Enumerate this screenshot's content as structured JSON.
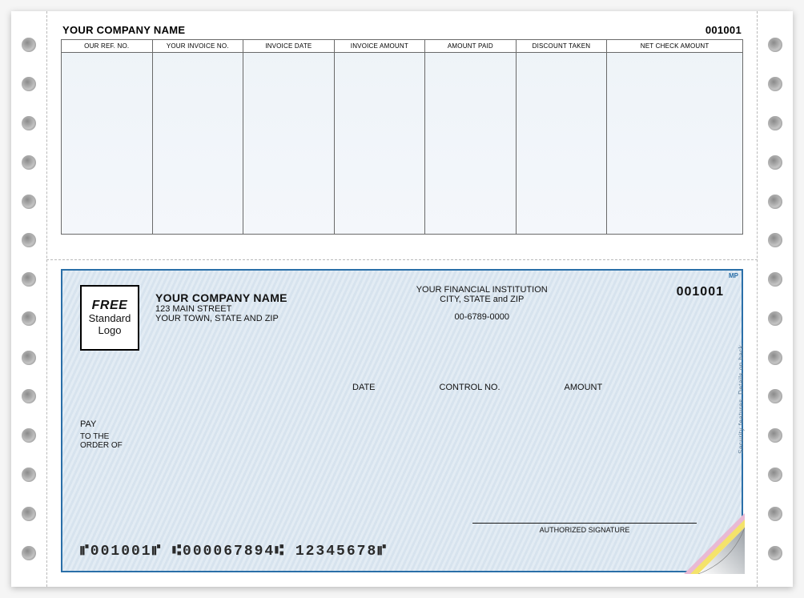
{
  "stub": {
    "company_name": "YOUR COMPANY NAME",
    "check_number": "001001",
    "columns": [
      "OUR REF. NO.",
      "YOUR INVOICE NO.",
      "INVOICE DATE",
      "INVOICE AMOUNT",
      "AMOUNT PAID",
      "DISCOUNT TAKEN",
      "NET CHECK AMOUNT"
    ],
    "background_gradient": [
      "#eef3f8",
      "#f4f7fb"
    ],
    "border_color": "#6a6a6a"
  },
  "check": {
    "logo": {
      "line1": "FREE",
      "line2": "Standard",
      "line3": "Logo"
    },
    "company": {
      "name": "YOUR COMPANY NAME",
      "street": "123 MAIN STREET",
      "city_state_zip": "YOUR TOWN, STATE AND ZIP"
    },
    "bank": {
      "name": "YOUR FINANCIAL INSTITUTION",
      "city_state_zip": "CITY, STATE and ZIP",
      "routing_display": "00-6789-0000"
    },
    "check_number": "001001",
    "field_labels": {
      "date": "DATE",
      "control_no": "CONTROL NO.",
      "amount": "AMOUNT"
    },
    "pay": {
      "pay_label": "PAY",
      "order_of_label": "TO THE\nORDER OF"
    },
    "signature_label": "AUTHORIZED SIGNATURE",
    "micr": "⑈001001⑈  ⑆000067894⑆  12345678⑈",
    "security_text": "Security features. Details on back.",
    "mp_mark": "MP",
    "border_color": "#2a6fa8",
    "pattern_colors": [
      "#d7e3ee",
      "#e3ecf4"
    ],
    "curl_colors": {
      "under1": "#f4e36b",
      "under2": "#e9b9d4",
      "top_light": "#ffffff",
      "top_dark": "#9aa0a6"
    }
  },
  "paper": {
    "hole_count_per_side": 14,
    "hole_colors": [
      "#8a8a8a",
      "#b5b5b5",
      "#e8e8e8"
    ],
    "perforation_color": "#b9b9b9"
  }
}
